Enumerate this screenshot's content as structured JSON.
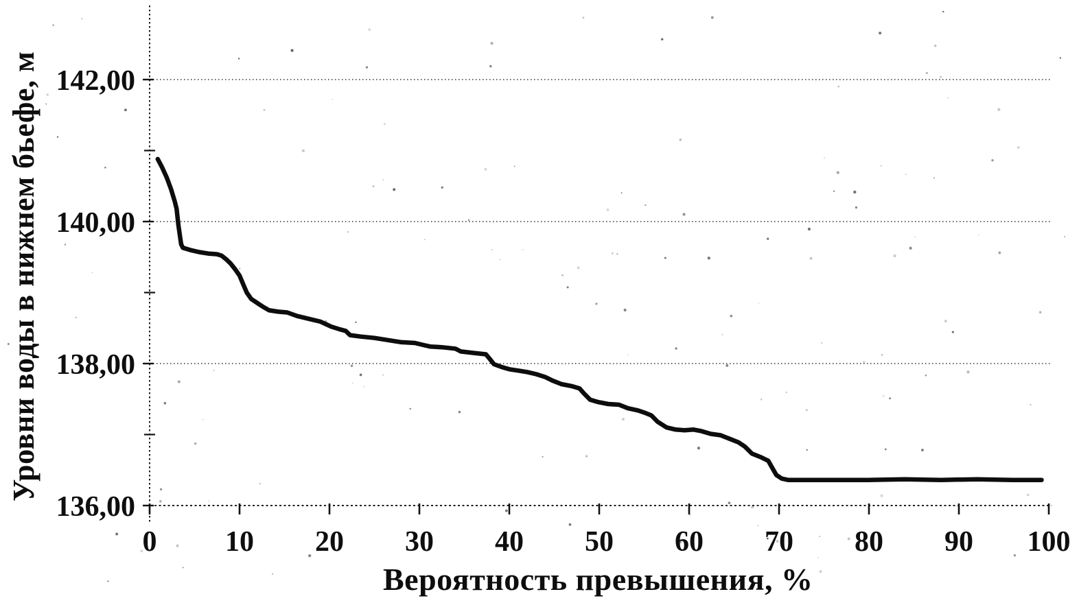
{
  "page": {
    "background": "#ffffff",
    "ink_color": "#0d0d0d"
  },
  "chart_data": {
    "type": "line",
    "xlabel": "Вероятность превышения, %",
    "ylabel": "Уровни воды в нижнем бьефе, м",
    "xlim": [
      0,
      100
    ],
    "ylim": [
      136,
      142.3
    ],
    "grid": {
      "horizontal": true,
      "vertical": false,
      "style": "dotted"
    },
    "legend": null,
    "xtick_values": [
      0,
      10,
      20,
      30,
      40,
      50,
      60,
      70,
      80,
      90,
      100
    ],
    "xtick_labels": [
      "0",
      "10",
      "20",
      "30",
      "40",
      "50",
      "60",
      "70",
      "80",
      "90",
      "100"
    ],
    "ytick_major_values": [
      136,
      138,
      140,
      142
    ],
    "ytick_major_labels": [
      "136,00",
      "138,00",
      "140,00",
      "142,00"
    ],
    "ytick_minor_values": [
      137,
      139,
      141
    ],
    "series": [
      {
        "name": "water-level-exceedance-curve",
        "color": "#0d0d0d",
        "points": [
          [
            0.9,
            140.88
          ],
          [
            1.4,
            140.76
          ],
          [
            1.9,
            140.62
          ],
          [
            2.4,
            140.45
          ],
          [
            2.8,
            140.28
          ],
          [
            3.0,
            140.18
          ],
          [
            3.2,
            139.95
          ],
          [
            3.5,
            139.68
          ],
          [
            3.7,
            139.63
          ],
          [
            4.5,
            139.6
          ],
          [
            5.5,
            139.57
          ],
          [
            6.5,
            139.55
          ],
          [
            7.5,
            139.54
          ],
          [
            8.0,
            139.52
          ],
          [
            8.5,
            139.47
          ],
          [
            9.0,
            139.41
          ],
          [
            9.5,
            139.33
          ],
          [
            10.0,
            139.24
          ],
          [
            10.4,
            139.12
          ],
          [
            10.8,
            139.0
          ],
          [
            11.3,
            138.91
          ],
          [
            12.0,
            138.85
          ],
          [
            12.6,
            138.8
          ],
          [
            13.3,
            138.75
          ],
          [
            14.3,
            138.73
          ],
          [
            15.3,
            138.72
          ],
          [
            16.4,
            138.67
          ],
          [
            17.7,
            138.63
          ],
          [
            19.0,
            138.59
          ],
          [
            20.2,
            138.52
          ],
          [
            21.2,
            138.48
          ],
          [
            21.8,
            138.46
          ],
          [
            22.3,
            138.4
          ],
          [
            23.5,
            138.38
          ],
          [
            25.0,
            138.36
          ],
          [
            26.5,
            138.33
          ],
          [
            28.0,
            138.3
          ],
          [
            29.5,
            138.29
          ],
          [
            30.5,
            138.26
          ],
          [
            31.2,
            138.24
          ],
          [
            32.5,
            138.23
          ],
          [
            34.0,
            138.21
          ],
          [
            34.6,
            138.17
          ],
          [
            36.0,
            138.15
          ],
          [
            37.4,
            138.13
          ],
          [
            37.8,
            138.07
          ],
          [
            38.3,
            137.99
          ],
          [
            39.2,
            137.95
          ],
          [
            40.0,
            137.92
          ],
          [
            41.0,
            137.9
          ],
          [
            42.0,
            137.88
          ],
          [
            43.0,
            137.85
          ],
          [
            44.0,
            137.81
          ],
          [
            44.8,
            137.76
          ],
          [
            45.8,
            137.71
          ],
          [
            47.0,
            137.68
          ],
          [
            47.8,
            137.65
          ],
          [
            48.3,
            137.58
          ],
          [
            49.0,
            137.49
          ],
          [
            49.8,
            137.46
          ],
          [
            51.0,
            137.43
          ],
          [
            52.2,
            137.42
          ],
          [
            53.2,
            137.37
          ],
          [
            54.3,
            137.34
          ],
          [
            55.0,
            137.31
          ],
          [
            55.8,
            137.27
          ],
          [
            56.5,
            137.18
          ],
          [
            57.5,
            137.1
          ],
          [
            58.5,
            137.07
          ],
          [
            59.5,
            137.06
          ],
          [
            60.5,
            137.07
          ],
          [
            61.3,
            137.05
          ],
          [
            62.4,
            137.01
          ],
          [
            63.5,
            136.99
          ],
          [
            64.5,
            136.94
          ],
          [
            65.5,
            136.89
          ],
          [
            66.2,
            136.83
          ],
          [
            67.0,
            136.73
          ],
          [
            68.0,
            136.68
          ],
          [
            68.8,
            136.63
          ],
          [
            69.2,
            136.54
          ],
          [
            69.7,
            136.43
          ],
          [
            70.3,
            136.38
          ],
          [
            71.0,
            136.36
          ],
          [
            73.0,
            136.36
          ],
          [
            76.0,
            136.36
          ],
          [
            80.0,
            136.36
          ],
          [
            84.0,
            136.37
          ],
          [
            88.0,
            136.36
          ],
          [
            92.0,
            136.37
          ],
          [
            96.0,
            136.36
          ],
          [
            99.2,
            136.36
          ]
        ]
      }
    ]
  }
}
